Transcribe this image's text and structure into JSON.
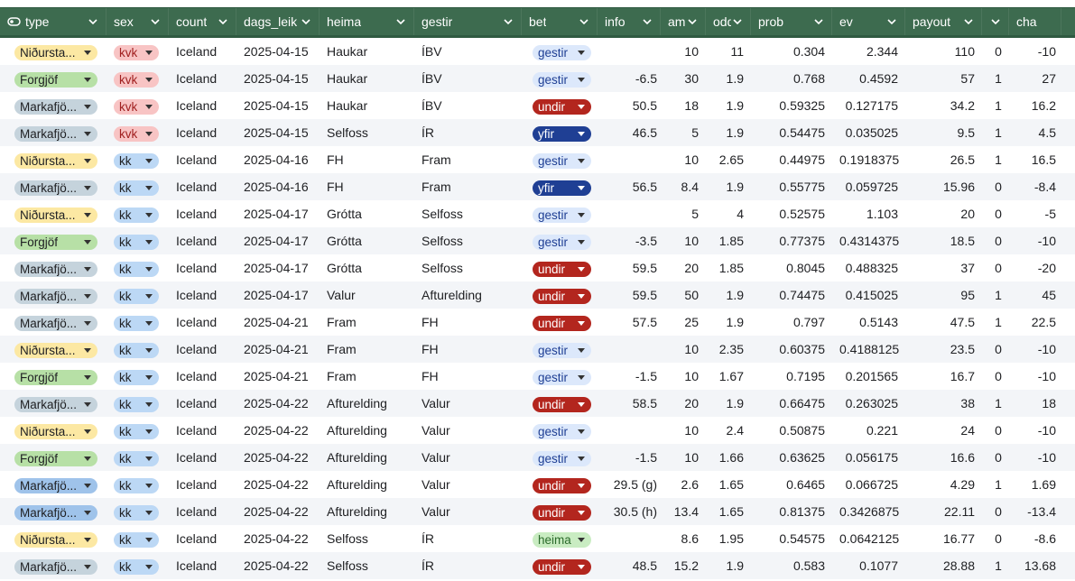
{
  "columns": [
    {
      "key": "type",
      "label": "type"
    },
    {
      "key": "sex",
      "label": "sex"
    },
    {
      "key": "country",
      "label": "count"
    },
    {
      "key": "dags",
      "label": "dags_leik"
    },
    {
      "key": "heima",
      "label": "heima"
    },
    {
      "key": "gestir",
      "label": "gestir"
    },
    {
      "key": "bet",
      "label": "bet"
    },
    {
      "key": "info",
      "label": "info"
    },
    {
      "key": "amount",
      "label": "amo"
    },
    {
      "key": "odds",
      "label": "odd"
    },
    {
      "key": "prob",
      "label": "prob"
    },
    {
      "key": "ev",
      "label": "ev"
    },
    {
      "key": "payout",
      "label": "payout"
    },
    {
      "key": "win",
      "label": ""
    },
    {
      "key": "change",
      "label": "cha"
    }
  ],
  "chip_colors": {
    "type": {
      "Niðursta...": "#fce8a3",
      "Forgjöf": "#b7e0a6",
      "Markafjö...": "#c5d3dc",
      "Markafjö...b": "#9fc3ea"
    },
    "sex": {
      "kvk": "#f8c4c4",
      "kk": "#bcd8f5"
    },
    "bet": {
      "gestir": "#dce8fb",
      "undir": "#b3261e",
      "yfir": "#1f3f94",
      "heima": "#c9ecc2"
    }
  },
  "rows": [
    {
      "type": "Niðursta...",
      "typeColor": "#fce8a3",
      "sex": "kvk",
      "country": "Iceland",
      "dags": "2025-04-15",
      "heima": "Haukar",
      "gestir": "ÍBV",
      "bet": "gestir",
      "info": "",
      "amount": "10",
      "odds": "11",
      "prob": "0.304",
      "ev": "2.344",
      "payout": "110",
      "win": "0",
      "change": "-10"
    },
    {
      "type": "Forgjöf",
      "typeColor": "#b7e0a6",
      "sex": "kvk",
      "country": "Iceland",
      "dags": "2025-04-15",
      "heima": "Haukar",
      "gestir": "ÍBV",
      "bet": "gestir",
      "info": "-6.5",
      "amount": "30",
      "odds": "1.9",
      "prob": "0.768",
      "ev": "0.4592",
      "payout": "57",
      "win": "1",
      "change": "27"
    },
    {
      "type": "Markafjö...",
      "typeColor": "#c5d3dc",
      "sex": "kvk",
      "country": "Iceland",
      "dags": "2025-04-15",
      "heima": "Haukar",
      "gestir": "ÍBV",
      "bet": "undir",
      "info": "50.5",
      "amount": "18",
      "odds": "1.9",
      "prob": "0.59325",
      "ev": "0.127175",
      "payout": "34.2",
      "win": "1",
      "change": "16.2"
    },
    {
      "type": "Markafjö...",
      "typeColor": "#c5d3dc",
      "sex": "kvk",
      "country": "Iceland",
      "dags": "2025-04-15",
      "heima": "Selfoss",
      "gestir": "ÍR",
      "bet": "yfir",
      "info": "46.5",
      "amount": "5",
      "odds": "1.9",
      "prob": "0.54475",
      "ev": "0.035025",
      "payout": "9.5",
      "win": "1",
      "change": "4.5"
    },
    {
      "type": "Niðursta...",
      "typeColor": "#fce8a3",
      "sex": "kk",
      "country": "Iceland",
      "dags": "2025-04-16",
      "heima": "FH",
      "gestir": "Fram",
      "bet": "gestir",
      "info": "",
      "amount": "10",
      "odds": "2.65",
      "prob": "0.44975",
      "ev": "0.1918375",
      "payout": "26.5",
      "win": "1",
      "change": "16.5"
    },
    {
      "type": "Markafjö...",
      "typeColor": "#c5d3dc",
      "sex": "kk",
      "country": "Iceland",
      "dags": "2025-04-16",
      "heima": "FH",
      "gestir": "Fram",
      "bet": "yfir",
      "info": "56.5",
      "amount": "8.4",
      "odds": "1.9",
      "prob": "0.55775",
      "ev": "0.059725",
      "payout": "15.96",
      "win": "0",
      "change": "-8.4"
    },
    {
      "type": "Niðursta...",
      "typeColor": "#fce8a3",
      "sex": "kk",
      "country": "Iceland",
      "dags": "2025-04-17",
      "heima": "Grótta",
      "gestir": "Selfoss",
      "bet": "gestir",
      "info": "",
      "amount": "5",
      "odds": "4",
      "prob": "0.52575",
      "ev": "1.103",
      "payout": "20",
      "win": "0",
      "change": "-5"
    },
    {
      "type": "Forgjöf",
      "typeColor": "#b7e0a6",
      "sex": "kk",
      "country": "Iceland",
      "dags": "2025-04-17",
      "heima": "Grótta",
      "gestir": "Selfoss",
      "bet": "gestir",
      "info": "-3.5",
      "amount": "10",
      "odds": "1.85",
      "prob": "0.77375",
      "ev": "0.4314375",
      "payout": "18.5",
      "win": "0",
      "change": "-10"
    },
    {
      "type": "Markafjö...",
      "typeColor": "#c5d3dc",
      "sex": "kk",
      "country": "Iceland",
      "dags": "2025-04-17",
      "heima": "Grótta",
      "gestir": "Selfoss",
      "bet": "undir",
      "info": "59.5",
      "amount": "20",
      "odds": "1.85",
      "prob": "0.8045",
      "ev": "0.488325",
      "payout": "37",
      "win": "0",
      "change": "-20"
    },
    {
      "type": "Markafjö...",
      "typeColor": "#c5d3dc",
      "sex": "kk",
      "country": "Iceland",
      "dags": "2025-04-17",
      "heima": "Valur",
      "gestir": "Afturelding",
      "bet": "undir",
      "info": "59.5",
      "amount": "50",
      "odds": "1.9",
      "prob": "0.74475",
      "ev": "0.415025",
      "payout": "95",
      "win": "1",
      "change": "45"
    },
    {
      "type": "Markafjö...",
      "typeColor": "#c5d3dc",
      "sex": "kk",
      "country": "Iceland",
      "dags": "2025-04-21",
      "heima": "Fram",
      "gestir": "FH",
      "bet": "undir",
      "info": "57.5",
      "amount": "25",
      "odds": "1.9",
      "prob": "0.797",
      "ev": "0.5143",
      "payout": "47.5",
      "win": "1",
      "change": "22.5"
    },
    {
      "type": "Niðursta...",
      "typeColor": "#fce8a3",
      "sex": "kk",
      "country": "Iceland",
      "dags": "2025-04-21",
      "heima": "Fram",
      "gestir": "FH",
      "bet": "gestir",
      "info": "",
      "amount": "10",
      "odds": "2.35",
      "prob": "0.60375",
      "ev": "0.4188125",
      "payout": "23.5",
      "win": "0",
      "change": "-10"
    },
    {
      "type": "Forgjöf",
      "typeColor": "#b7e0a6",
      "sex": "kk",
      "country": "Iceland",
      "dags": "2025-04-21",
      "heima": "Fram",
      "gestir": "FH",
      "bet": "gestir",
      "info": "-1.5",
      "amount": "10",
      "odds": "1.67",
      "prob": "0.7195",
      "ev": "0.201565",
      "payout": "16.7",
      "win": "0",
      "change": "-10"
    },
    {
      "type": "Markafjö...",
      "typeColor": "#c5d3dc",
      "sex": "kk",
      "country": "Iceland",
      "dags": "2025-04-22",
      "heima": "Afturelding",
      "gestir": "Valur",
      "bet": "undir",
      "info": "58.5",
      "amount": "20",
      "odds": "1.9",
      "prob": "0.66475",
      "ev": "0.263025",
      "payout": "38",
      "win": "1",
      "change": "18"
    },
    {
      "type": "Niðursta...",
      "typeColor": "#fce8a3",
      "sex": "kk",
      "country": "Iceland",
      "dags": "2025-04-22",
      "heima": "Afturelding",
      "gestir": "Valur",
      "bet": "gestir",
      "info": "",
      "amount": "10",
      "odds": "2.4",
      "prob": "0.50875",
      "ev": "0.221",
      "payout": "24",
      "win": "0",
      "change": "-10"
    },
    {
      "type": "Forgjöf",
      "typeColor": "#b7e0a6",
      "sex": "kk",
      "country": "Iceland",
      "dags": "2025-04-22",
      "heima": "Afturelding",
      "gestir": "Valur",
      "bet": "gestir",
      "info": "-1.5",
      "amount": "10",
      "odds": "1.66",
      "prob": "0.63625",
      "ev": "0.056175",
      "payout": "16.6",
      "win": "0",
      "change": "-10"
    },
    {
      "type": "Markafjö...",
      "typeColor": "#9fc3ea",
      "sex": "kk",
      "country": "Iceland",
      "dags": "2025-04-22",
      "heima": "Afturelding",
      "gestir": "Valur",
      "bet": "undir",
      "info": "29.5 (g)",
      "amount": "2.6",
      "odds": "1.65",
      "prob": "0.6465",
      "ev": "0.066725",
      "payout": "4.29",
      "win": "1",
      "change": "1.69"
    },
    {
      "type": "Markafjö...",
      "typeColor": "#9fc3ea",
      "sex": "kk",
      "country": "Iceland",
      "dags": "2025-04-22",
      "heima": "Afturelding",
      "gestir": "Valur",
      "bet": "undir",
      "info": "30.5 (h)",
      "amount": "13.4",
      "odds": "1.65",
      "prob": "0.81375",
      "ev": "0.3426875",
      "payout": "22.11",
      "win": "0",
      "change": "-13.4"
    },
    {
      "type": "Niðursta...",
      "typeColor": "#fce8a3",
      "sex": "kk",
      "country": "Iceland",
      "dags": "2025-04-22",
      "heima": "Selfoss",
      "gestir": "ÍR",
      "bet": "heima",
      "info": "",
      "amount": "8.6",
      "odds": "1.95",
      "prob": "0.54575",
      "ev": "0.0642125",
      "payout": "16.77",
      "win": "0",
      "change": "-8.6"
    },
    {
      "type": "Markafjö...",
      "typeColor": "#c5d3dc",
      "sex": "kk",
      "country": "Iceland",
      "dags": "2025-04-22",
      "heima": "Selfoss",
      "gestir": "ÍR",
      "bet": "undir",
      "info": "48.5",
      "amount": "15.2",
      "odds": "1.9",
      "prob": "0.583",
      "ev": "0.1077",
      "payout": "28.88",
      "win": "1",
      "change": "13.68"
    }
  ]
}
